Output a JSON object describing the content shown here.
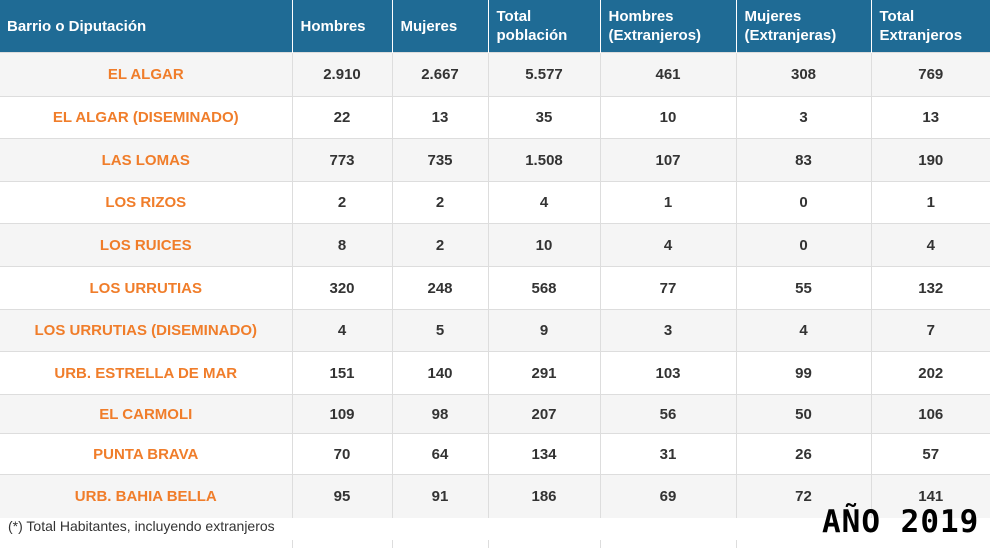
{
  "table": {
    "headers": [
      "Barrio o Diputación",
      "Hombres",
      "Mujeres",
      "Total población",
      "Hombres (Extranjeros)",
      "Mujeres (Extranjeras)",
      "Total Extranjeros"
    ],
    "rows": [
      [
        "EL ALGAR",
        "2.910",
        "2.667",
        "5.577",
        "461",
        "308",
        "769"
      ],
      [
        "EL ALGAR (DISEMINADO)",
        "22",
        "13",
        "35",
        "10",
        "3",
        "13"
      ],
      [
        "LAS LOMAS",
        "773",
        "735",
        "1.508",
        "107",
        "83",
        "190"
      ],
      [
        "LOS RIZOS",
        "2",
        "2",
        "4",
        "1",
        "0",
        "1"
      ],
      [
        "LOS RUICES",
        "8",
        "2",
        "10",
        "4",
        "0",
        "4"
      ],
      [
        "LOS URRUTIAS",
        "320",
        "248",
        "568",
        "77",
        "55",
        "132"
      ],
      [
        "LOS URRUTIAS (DISEMINADO)",
        "4",
        "5",
        "9",
        "3",
        "4",
        "7"
      ],
      [
        "URB. ESTRELLA DE MAR",
        "151",
        "140",
        "291",
        "103",
        "99",
        "202"
      ],
      [
        "EL CARMOLI",
        "109",
        "98",
        "207",
        "56",
        "50",
        "106"
      ],
      [
        "PUNTA BRAVA",
        "70",
        "64",
        "134",
        "31",
        "26",
        "57"
      ],
      [
        "URB. BAHIA BELLA",
        "95",
        "91",
        "186",
        "69",
        "72",
        "141"
      ]
    ]
  },
  "footnote": "(*) Total Habitantes, incluyendo extranjeros",
  "year_stamp": "AÑO 2019",
  "colors": {
    "header_bg": "#1f6b95",
    "header_text": "#ffffff",
    "barrio_text": "#f07d2a",
    "stripe": "#f5f5f5"
  }
}
